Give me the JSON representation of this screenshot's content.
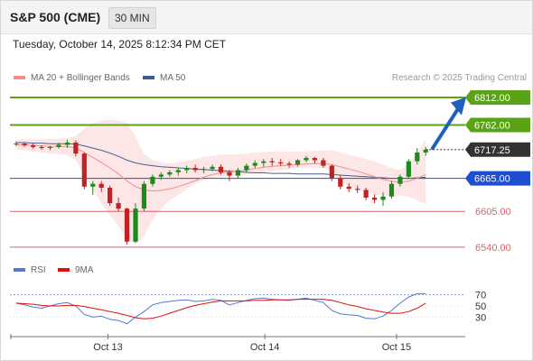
{
  "header": {
    "instrument": "S&P 500 (CME)",
    "timeframe": "30 MIN"
  },
  "datetime": "Tuesday, October 14, 2025 8:12:34 PM CET",
  "legend_price": [
    {
      "label": "MA 20 + Bollinger Bands",
      "color": "#f48c8c"
    },
    {
      "label": "MA 50",
      "color": "#3a5a9a"
    }
  ],
  "research": "Research © 2025 Trading Central",
  "legend_rsi": [
    {
      "label": "RSI",
      "color": "#5577cc"
    },
    {
      "label": "9MA",
      "color": "#dd1111"
    }
  ],
  "colors": {
    "resistance": "#5aa317",
    "pivot": "#1f4fd1",
    "support": "#e0606c",
    "candle_up": "#1c8a1c",
    "candle_down": "#c22222",
    "last_price": "#333333",
    "band_fill": "#fde3e3",
    "ma20": "#f48c8c",
    "ma50": "#4a5f95",
    "arrow": "#1f5fc0"
  },
  "chart_data": [
    {
      "type": "candlestick",
      "name": "price",
      "ylim": [
        6525,
        6830
      ],
      "ohlc_sampled": [
        [
          6728,
          6732,
          6724,
          6728
        ],
        [
          6728,
          6729,
          6722,
          6725
        ],
        [
          6725,
          6728,
          6719,
          6722
        ],
        [
          6722,
          6725,
          6717,
          6720
        ],
        [
          6720,
          6724,
          6716,
          6722
        ],
        [
          6722,
          6730,
          6719,
          6726
        ],
        [
          6726,
          6735,
          6720,
          6730
        ],
        [
          6730,
          6734,
          6705,
          6710
        ],
        [
          6710,
          6712,
          6645,
          6650
        ],
        [
          6650,
          6660,
          6635,
          6655
        ],
        [
          6655,
          6660,
          6640,
          6648
        ],
        [
          6648,
          6652,
          6615,
          6620
        ],
        [
          6620,
          6630,
          6605,
          6610
        ],
        [
          6610,
          6612,
          6545,
          6550
        ],
        [
          6550,
          6620,
          6548,
          6610
        ],
        [
          6610,
          6660,
          6605,
          6655
        ],
        [
          6655,
          6672,
          6650,
          6668
        ],
        [
          6668,
          6676,
          6662,
          6672
        ],
        [
          6672,
          6680,
          6668,
          6676
        ],
        [
          6676,
          6684,
          6670,
          6680
        ],
        [
          6680,
          6688,
          6674,
          6684
        ],
        [
          6684,
          6690,
          6676,
          6680
        ],
        [
          6680,
          6686,
          6674,
          6682
        ],
        [
          6682,
          6690,
          6678,
          6686
        ],
        [
          6686,
          6690,
          6672,
          6676
        ],
        [
          6676,
          6680,
          6660,
          6670
        ],
        [
          6670,
          6684,
          6666,
          6680
        ],
        [
          6680,
          6692,
          6675,
          6688
        ],
        [
          6688,
          6698,
          6684,
          6693
        ],
        [
          6693,
          6700,
          6686,
          6696
        ],
        [
          6696,
          6702,
          6688,
          6694
        ],
        [
          6694,
          6700,
          6688,
          6692
        ],
        [
          6692,
          6696,
          6684,
          6690
        ],
        [
          6690,
          6700,
          6686,
          6698
        ],
        [
          6698,
          6706,
          6694,
          6702
        ],
        [
          6702,
          6704,
          6692,
          6698
        ],
        [
          6698,
          6702,
          6684,
          6688
        ],
        [
          6688,
          6690,
          6660,
          6665
        ],
        [
          6665,
          6670,
          6645,
          6650
        ],
        [
          6650,
          6656,
          6640,
          6646
        ],
        [
          6646,
          6652,
          6638,
          6644
        ],
        [
          6644,
          6648,
          6625,
          6630
        ],
        [
          6630,
          6636,
          6620,
          6626
        ],
        [
          6626,
          6640,
          6615,
          6632
        ],
        [
          6632,
          6660,
          6628,
          6655
        ],
        [
          6655,
          6672,
          6650,
          6668
        ],
        [
          6668,
          6700,
          6664,
          6696
        ],
        [
          6696,
          6720,
          6690,
          6712
        ],
        [
          6712,
          6722,
          6706,
          6717
        ]
      ],
      "last_price": 6717.25,
      "levels": [
        {
          "value": 6812.0,
          "label": "6812.00",
          "kind": "resistance"
        },
        {
          "value": 6762.0,
          "label": "6762.00",
          "kind": "resistance"
        },
        {
          "value": 6665.0,
          "label": "6665.00",
          "kind": "pivot"
        },
        {
          "value": 6605.0,
          "label": "6605.00",
          "kind": "support"
        },
        {
          "value": 6540.0,
          "label": "6540.00",
          "kind": "support"
        }
      ],
      "last_label": "6717.25",
      "ma20": [
        6726,
        6726,
        6725,
        6724,
        6723,
        6723,
        6723,
        6720,
        6712,
        6703,
        6694,
        6684,
        6673,
        6660,
        6650,
        6644,
        6642,
        6643,
        6646,
        6650,
        6655,
        6661,
        6667,
        6672,
        6675,
        6676,
        6678,
        6680,
        6683,
        6685,
        6687,
        6688,
        6689,
        6690,
        6691,
        6692,
        6692,
        6690,
        6686,
        6682,
        6678,
        6673,
        6668,
        6663,
        6660,
        6658,
        6660,
        6665,
        6672
      ],
      "ma50": [
        6730,
        6730,
        6729,
        6729,
        6728,
        6728,
        6728,
        6727,
        6724,
        6720,
        6716,
        6711,
        6705,
        6698,
        6693,
        6690,
        6688,
        6686,
        6685,
        6684,
        6683,
        6682,
        6681,
        6680,
        6679,
        6678,
        6677,
        6676,
        6675,
        6675,
        6674,
        6674,
        6674,
        6673,
        6673,
        6673,
        6673,
        6672,
        6671,
        6670,
        6669,
        6668,
        6667,
        6666,
        6665,
        6665,
        6665,
        6666,
        6667
      ],
      "band_upper": [
        6735,
        6736,
        6736,
        6736,
        6737,
        6737,
        6738,
        6742,
        6755,
        6765,
        6770,
        6772,
        6770,
        6766,
        6740,
        6710,
        6698,
        6694,
        6692,
        6694,
        6697,
        6700,
        6704,
        6706,
        6708,
        6708,
        6709,
        6710,
        6712,
        6713,
        6714,
        6714,
        6714,
        6713,
        6714,
        6715,
        6716,
        6716,
        6712,
        6708,
        6704,
        6700,
        6696,
        6690,
        6684,
        6680,
        6690,
        6712,
        6735
      ],
      "band_lower": [
        6718,
        6716,
        6714,
        6712,
        6710,
        6709,
        6708,
        6698,
        6670,
        6645,
        6620,
        6598,
        6578,
        6555,
        6545,
        6560,
        6590,
        6610,
        6625,
        6635,
        6645,
        6655,
        6662,
        6666,
        6668,
        6668,
        6670,
        6672,
        6674,
        6676,
        6678,
        6680,
        6681,
        6683,
        6684,
        6684,
        6684,
        6676,
        6660,
        6650,
        6645,
        6640,
        6636,
        6633,
        6632,
        6634,
        6632,
        6625,
        6618
      ]
    },
    {
      "type": "line",
      "name": "rsi",
      "ylim": [
        0,
        100
      ],
      "yticks": [
        30,
        50,
        70
      ],
      "rsi": [
        55,
        52,
        48,
        46,
        50,
        54,
        56,
        50,
        35,
        30,
        32,
        26,
        24,
        18,
        30,
        40,
        52,
        56,
        58,
        60,
        61,
        58,
        59,
        62,
        60,
        52,
        56,
        60,
        63,
        64,
        62,
        61,
        60,
        62,
        64,
        60,
        56,
        42,
        36,
        34,
        33,
        28,
        27,
        32,
        42,
        55,
        66,
        72,
        72
      ],
      "rsi_ma": [
        55,
        54,
        53,
        51,
        50,
        50,
        51,
        51,
        49,
        46,
        43,
        40,
        37,
        33,
        29,
        27,
        28,
        32,
        37,
        42,
        47,
        51,
        54,
        57,
        59,
        59,
        59,
        59,
        60,
        60,
        61,
        61,
        61,
        62,
        62,
        62,
        62,
        60,
        56,
        52,
        49,
        45,
        42,
        39,
        37,
        37,
        40,
        46,
        55
      ],
      "reference_level": 70
    }
  ],
  "xaxis": {
    "ticks": [
      {
        "label": "Oct 13",
        "pos": 0.23
      },
      {
        "label": "Oct 14",
        "pos": 0.605
      },
      {
        "label": "Oct 15",
        "pos": 0.92
      }
    ]
  }
}
